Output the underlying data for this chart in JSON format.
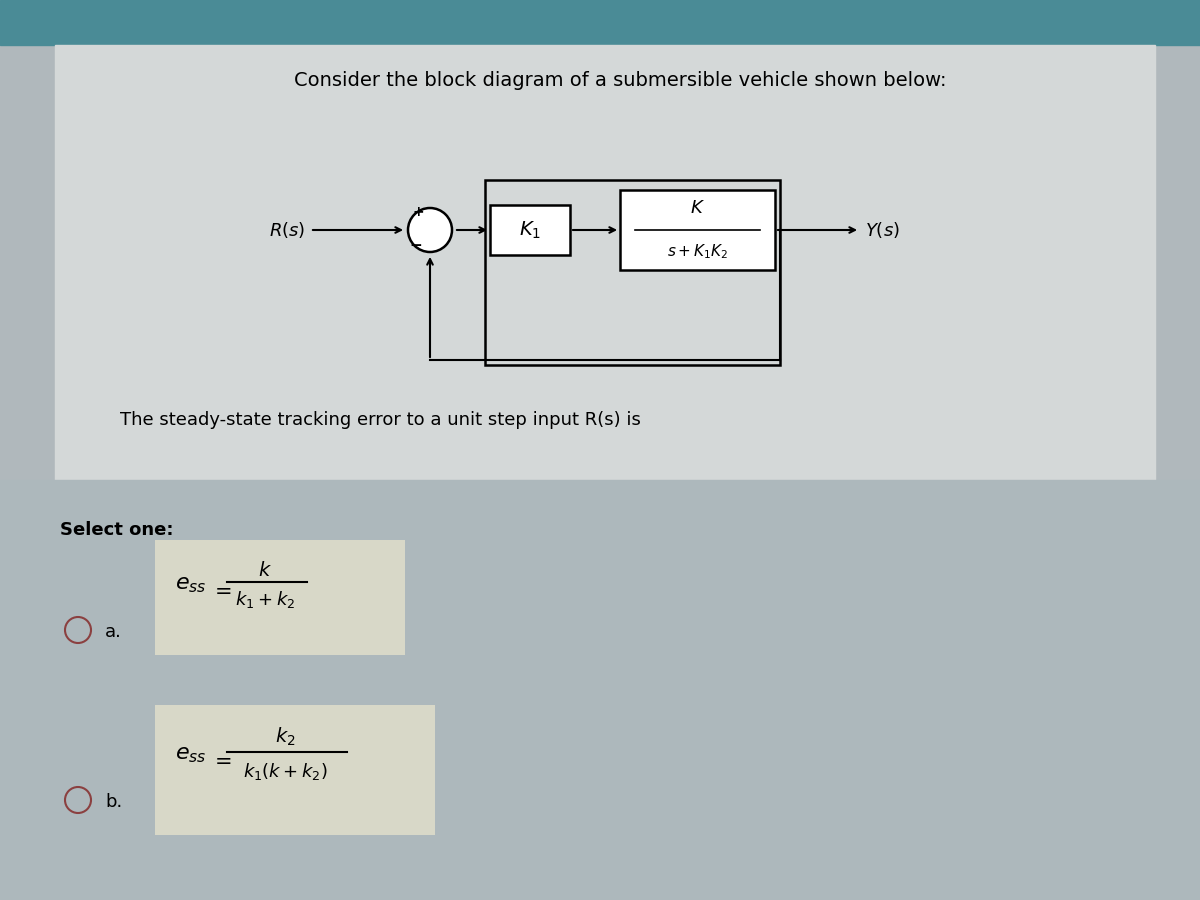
{
  "title": "Consider the block diagram of a submersible vehicle shown below:",
  "title_fontsize": 14,
  "question_text": "The steady-state tracking error to a unit step input R(s) is",
  "question_fontsize": 13,
  "select_one_text": "Select one:",
  "select_one_fontsize": 13,
  "option_a_label": "a.",
  "option_b_label": "b.",
  "teal_bar_color": "#4a8b96",
  "upper_panel_color": "#d4d8d8",
  "lower_panel_color": "#adb8bc",
  "answer_box_color": "#d8d8c8",
  "outer_bg": "#b0b8bc"
}
